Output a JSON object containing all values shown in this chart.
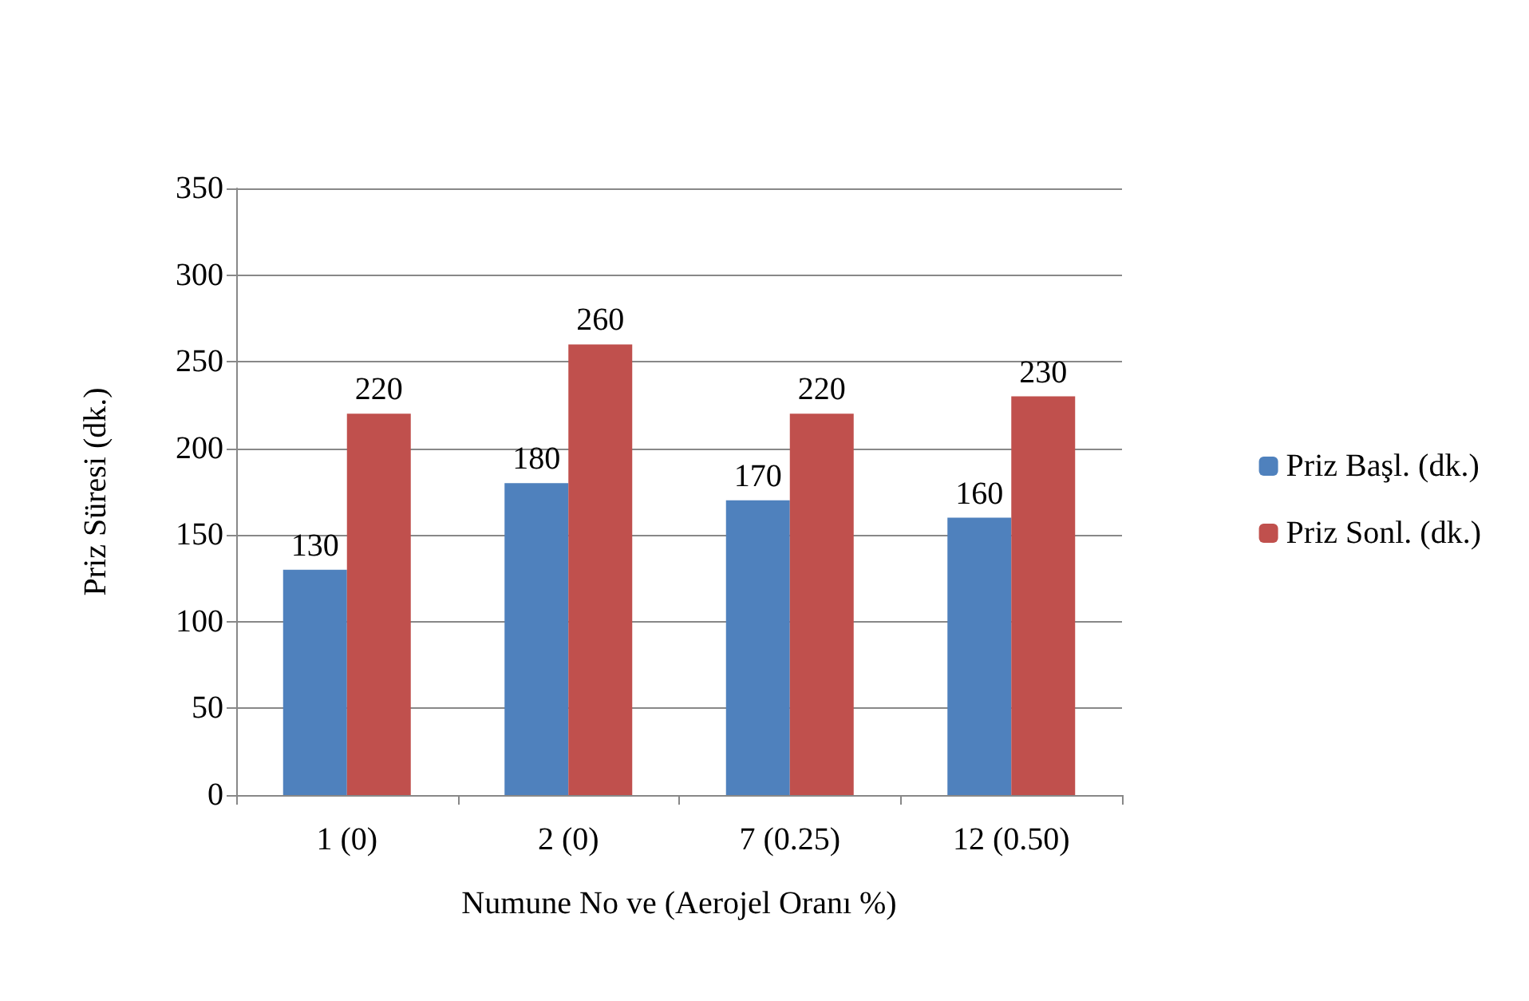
{
  "chart_data": {
    "type": "bar",
    "xlabel": "Numune No ve (Aerojel Oranı %)",
    "ylabel": "Priz Süresi (dk.)",
    "categories": [
      "1 (0)",
      "2 (0)",
      "7 (0.25)",
      "12 (0.50)"
    ],
    "series": [
      {
        "name": "Priz Başl. (dk.)",
        "color": "#4f81bd",
        "values": [
          130,
          180,
          170,
          160
        ]
      },
      {
        "name": "Priz Sonl. (dk.)",
        "color": "#c0504d",
        "values": [
          220,
          260,
          220,
          230
        ]
      }
    ],
    "ylim": [
      0,
      350
    ],
    "yticks": [
      0,
      50,
      100,
      150,
      200,
      250,
      300,
      350
    ],
    "grid": "y",
    "legend": "right",
    "data_labels": true
  }
}
